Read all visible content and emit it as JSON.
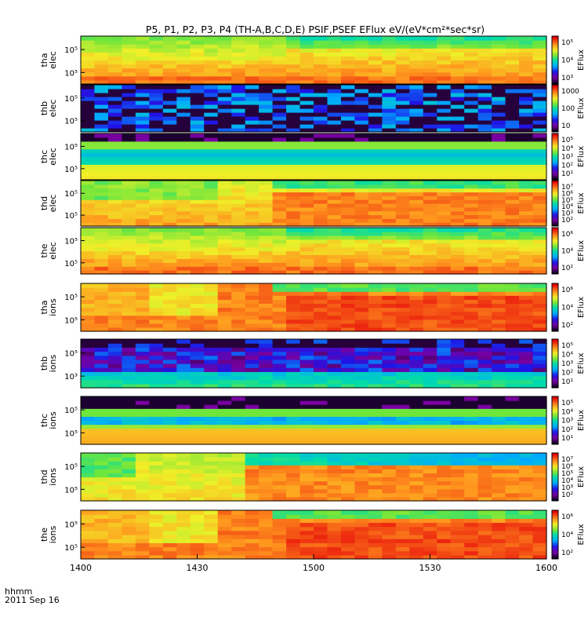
{
  "title": "P5, P1, P2, P3, P4 (TH-A,B,C,D,E) PSIF,PSEF EFlux eV/(eV*cm²*sec*sr)",
  "xaxis": {
    "ticks": [
      "1400",
      "1430",
      "1500",
      "1530",
      "1600"
    ],
    "unit_label": "hhmm",
    "date_label": "2011 Sep 16"
  },
  "colorbar_label": "EFlux",
  "chart_data": {
    "type": "heatmap",
    "x_range": [
      "14:00",
      "16:00"
    ],
    "x_tick_labels": [
      "1400",
      "1430",
      "1500",
      "1530",
      "1600"
    ],
    "y_scale": "log",
    "panels": [
      {
        "name": "tha elec",
        "ylabel": [
          "tha",
          "elec"
        ],
        "ytick_labels": [
          "10⁵",
          "10⁵"
        ],
        "cbar_ticks": [
          "10⁵",
          "10⁴",
          "10³"
        ],
        "cbar_label": "EFlux",
        "pattern": "warm"
      },
      {
        "name": "thb elec",
        "ylabel": [
          "thb",
          "elec"
        ],
        "ytick_labels": [
          "10⁵",
          "10⁵"
        ],
        "cbar_ticks": [
          "1000",
          "100",
          "10"
        ],
        "cbar_label": "EFlux",
        "pattern": "sparse"
      },
      {
        "name": "thc elec",
        "ylabel": [
          "thc",
          "elec"
        ],
        "ytick_labels": [
          "10⁵",
          "10⁵"
        ],
        "cbar_ticks": [
          "10⁵",
          "10⁴",
          "10³",
          "10²",
          "10¹"
        ],
        "cbar_label": "EFlux",
        "pattern": "bands"
      },
      {
        "name": "thd elec",
        "ylabel": [
          "thd",
          "elec"
        ],
        "ytick_labels": [
          "10⁵",
          "10⁵"
        ],
        "cbar_ticks": [
          "10⁷",
          "10⁶",
          "10⁵",
          "10⁴",
          "10³",
          "10²"
        ],
        "cbar_label": "EFlux",
        "pattern": "warm-green"
      },
      {
        "name": "the elec",
        "ylabel": [
          "the",
          "elec"
        ],
        "ytick_labels": [
          "10⁵",
          "10⁵"
        ],
        "cbar_ticks": [
          "10⁶",
          "10⁴",
          "10²"
        ],
        "cbar_label": "EFlux",
        "pattern": "warm"
      },
      {
        "name": "tha ions",
        "ylabel": [
          "tha",
          "ions"
        ],
        "ytick_labels": [
          "10⁵",
          "10⁵"
        ],
        "cbar_ticks": [
          "10⁶",
          "10⁴",
          "10²"
        ],
        "cbar_label": "EFlux",
        "pattern": "ions-warm"
      },
      {
        "name": "thb ions",
        "ylabel": [
          "thb",
          "ions"
        ],
        "ytick_labels": [
          "10⁵",
          "10³"
        ],
        "cbar_ticks": [
          "10⁵",
          "10⁴",
          "10³",
          "10²",
          "10¹"
        ],
        "cbar_label": "EFlux",
        "pattern": "ions-sparse"
      },
      {
        "name": "thc ions",
        "ylabel": [
          "thc",
          "ions"
        ],
        "ytick_labels": [
          "10⁵",
          "10⁵"
        ],
        "cbar_ticks": [
          "10⁵",
          "10⁴",
          "10³",
          "10²",
          "10¹"
        ],
        "cbar_label": "EFlux",
        "pattern": "bands-ions"
      },
      {
        "name": "thd ions",
        "ylabel": [
          "thd",
          "ions"
        ],
        "ytick_labels": [
          "10⁵",
          "10⁵"
        ],
        "cbar_ticks": [
          "10⁷",
          "10⁶",
          "10⁵",
          "10⁴",
          "10³",
          "10²"
        ],
        "cbar_label": "EFlux",
        "pattern": "ions-green"
      },
      {
        "name": "the ions",
        "ylabel": [
          "the",
          "ions"
        ],
        "ytick_labels": [
          "10⁵",
          "10⁵"
        ],
        "cbar_ticks": [
          "10⁶",
          "10⁴",
          "10²"
        ],
        "cbar_label": "EFlux",
        "pattern": "ions-warm"
      }
    ]
  }
}
